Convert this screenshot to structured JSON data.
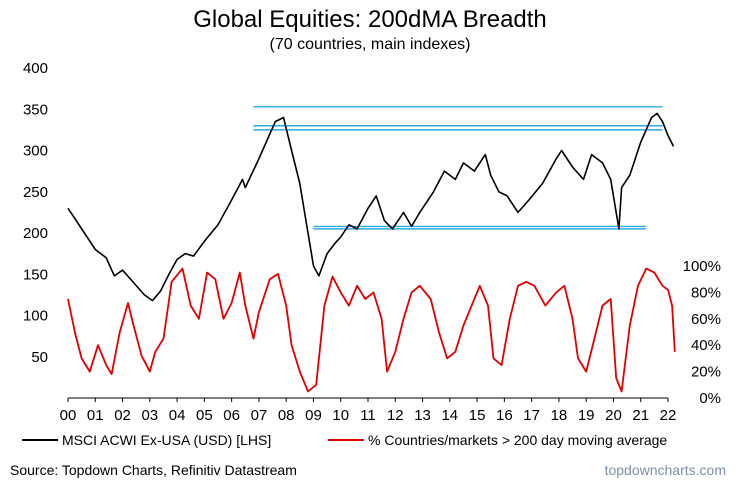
{
  "chart_data": {
    "type": "line",
    "title": "Global Equities: 200dMA Breadth",
    "subtitle": "(70 countries, main indexes)",
    "x_axis": {
      "range": [
        2000,
        2022
      ],
      "tick_labels": [
        "00",
        "01",
        "02",
        "03",
        "04",
        "05",
        "06",
        "07",
        "08",
        "09",
        "10",
        "11",
        "12",
        "13",
        "14",
        "15",
        "16",
        "17",
        "18",
        "19",
        "20",
        "21",
        "22"
      ]
    },
    "y_left": {
      "range": [
        0,
        400
      ],
      "ticks": [
        50,
        100,
        150,
        200,
        250,
        300,
        350,
        400
      ],
      "tick_labels": [
        "50",
        "100",
        "150",
        "200",
        "250",
        "300",
        "350",
        "400"
      ]
    },
    "y_right": {
      "range": [
        0,
        100
      ],
      "ticks": [
        0,
        20,
        40,
        60,
        80,
        100
      ],
      "tick_labels": [
        "0%",
        "20%",
        "40%",
        "60%",
        "80%",
        "100%"
      ]
    },
    "grid": false,
    "legend_position": "bottom",
    "series": [
      {
        "name": "MSCI ACWI Ex-USA (USD) [LHS]",
        "axis": "left",
        "color": "#000000",
        "x": [
          2000.0,
          2000.3,
          2000.6,
          2001.0,
          2001.4,
          2001.7,
          2002.0,
          2002.4,
          2002.8,
          2003.1,
          2003.4,
          2003.7,
          2004.0,
          2004.3,
          2004.6,
          2005.0,
          2005.5,
          2006.0,
          2006.4,
          2006.5,
          2007.0,
          2007.4,
          2007.6,
          2007.9,
          2008.2,
          2008.5,
          2008.8,
          2009.0,
          2009.2,
          2009.5,
          2009.8,
          2010.0,
          2010.3,
          2010.6,
          2011.0,
          2011.3,
          2011.6,
          2011.9,
          2012.3,
          2012.6,
          2012.9,
          2013.4,
          2013.8,
          2014.2,
          2014.5,
          2014.9,
          2015.3,
          2015.5,
          2015.8,
          2016.1,
          2016.5,
          2016.9,
          2017.4,
          2017.9,
          2018.1,
          2018.5,
          2018.9,
          2019.2,
          2019.6,
          2019.9,
          2020.2,
          2020.3,
          2020.6,
          2021.0,
          2021.4,
          2021.6,
          2021.8,
          2022.0,
          2022.2
        ],
        "y": [
          230,
          215,
          200,
          180,
          170,
          148,
          155,
          140,
          125,
          118,
          130,
          150,
          168,
          175,
          172,
          190,
          210,
          240,
          265,
          255,
          290,
          320,
          335,
          340,
          300,
          260,
          200,
          160,
          148,
          175,
          188,
          195,
          210,
          205,
          230,
          245,
          215,
          205,
          225,
          208,
          225,
          250,
          275,
          265,
          285,
          275,
          295,
          270,
          250,
          245,
          225,
          240,
          260,
          290,
          300,
          280,
          265,
          295,
          285,
          265,
          205,
          255,
          270,
          310,
          340,
          345,
          335,
          318,
          305
        ]
      },
      {
        "name": "% Countries/markets > 200 day moving average",
        "axis": "right",
        "color": "#e00000",
        "x": [
          2000.0,
          2000.25,
          2000.5,
          2000.8,
          2001.1,
          2001.4,
          2001.6,
          2001.9,
          2002.2,
          2002.4,
          2002.7,
          2003.0,
          2003.2,
          2003.5,
          2003.8,
          2004.2,
          2004.5,
          2004.8,
          2005.1,
          2005.4,
          2005.7,
          2006.0,
          2006.3,
          2006.5,
          2006.8,
          2007.0,
          2007.4,
          2007.7,
          2008.0,
          2008.2,
          2008.5,
          2008.8,
          2009.1,
          2009.4,
          2009.7,
          2010.0,
          2010.3,
          2010.6,
          2010.9,
          2011.2,
          2011.5,
          2011.7,
          2012.0,
          2012.3,
          2012.6,
          2012.9,
          2013.3,
          2013.6,
          2013.9,
          2014.2,
          2014.5,
          2014.8,
          2015.1,
          2015.4,
          2015.6,
          2015.9,
          2016.2,
          2016.5,
          2016.8,
          2017.1,
          2017.5,
          2017.9,
          2018.2,
          2018.5,
          2018.7,
          2019.0,
          2019.3,
          2019.6,
          2019.9,
          2020.1,
          2020.3,
          2020.6,
          2020.9,
          2021.2,
          2021.5,
          2021.8,
          2022.0,
          2022.15,
          2022.25
        ],
        "y": [
          75,
          50,
          30,
          20,
          40,
          25,
          18,
          50,
          72,
          55,
          32,
          20,
          35,
          45,
          88,
          98,
          70,
          60,
          95,
          90,
          60,
          72,
          95,
          70,
          45,
          65,
          90,
          94,
          70,
          40,
          20,
          5,
          10,
          70,
          92,
          80,
          70,
          85,
          75,
          80,
          60,
          20,
          35,
          60,
          80,
          85,
          75,
          50,
          30,
          35,
          55,
          70,
          85,
          70,
          30,
          25,
          60,
          85,
          88,
          85,
          70,
          80,
          85,
          60,
          30,
          20,
          45,
          70,
          75,
          15,
          5,
          55,
          85,
          98,
          95,
          85,
          82,
          70,
          35
        ]
      }
    ],
    "reference_lines": {
      "color": "#29abe2",
      "lines": [
        {
          "x": [
            2006.8,
            2021.8
          ],
          "y": 353
        },
        {
          "x": [
            2006.8,
            2021.8
          ],
          "y": 330
        },
        {
          "x": [
            2006.8,
            2021.8
          ],
          "y": 325
        },
        {
          "x": [
            2009.0,
            2021.2
          ],
          "y": 208
        },
        {
          "x": [
            2009.0,
            2021.2
          ],
          "y": 205
        }
      ]
    }
  },
  "footer": {
    "source": "Source: Topdown Charts, Refinitiv Datastream",
    "watermark": "topdowncharts.com"
  }
}
